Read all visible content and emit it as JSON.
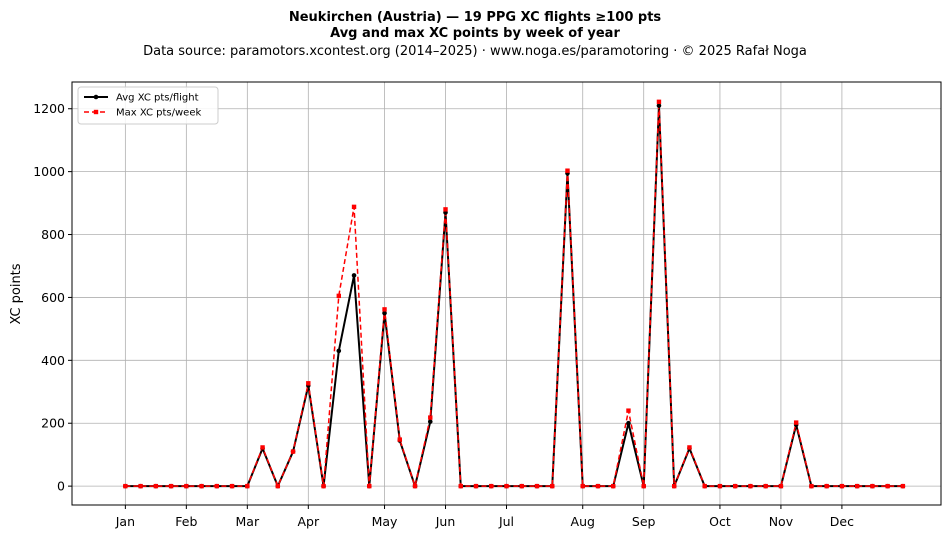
{
  "chart_data": {
    "type": "line",
    "title_line1": "Neukirchen (Austria)  —  19 PPG XC flights ≥100 pts",
    "title_line2": "Avg and max XC points by week of year",
    "subtitle": "Data source: paramotors.xcontest.org (2014–2025)  ·  www.noga.es/paramotoring  ·  © 2025 Rafał Noga",
    "xlabel": "",
    "ylabel": "XC points",
    "xlim": [
      -2.5,
      54.5
    ],
    "ylim": [
      -60,
      1285
    ],
    "yticks": [
      0,
      200,
      400,
      600,
      800,
      1000,
      1200
    ],
    "month_ticks": [
      {
        "label": "Jan",
        "week": 1
      },
      {
        "label": "Feb",
        "week": 5
      },
      {
        "label": "Mar",
        "week": 9
      },
      {
        "label": "Apr",
        "week": 13
      },
      {
        "label": "May",
        "week": 18
      },
      {
        "label": "Jun",
        "week": 22
      },
      {
        "label": "Jul",
        "week": 26
      },
      {
        "label": "Aug",
        "week": 31
      },
      {
        "label": "Sep",
        "week": 35
      },
      {
        "label": "Oct",
        "week": 40
      },
      {
        "label": "Nov",
        "week": 44
      },
      {
        "label": "Dec",
        "week": 48
      }
    ],
    "grid": true,
    "legend_position": "top-left",
    "x": [
      1,
      2,
      3,
      4,
      5,
      6,
      7,
      8,
      9,
      10,
      11,
      12,
      13,
      14,
      15,
      16,
      17,
      18,
      19,
      20,
      21,
      22,
      23,
      24,
      25,
      26,
      27,
      28,
      29,
      30,
      31,
      32,
      33,
      34,
      35,
      36,
      37,
      38,
      39,
      40,
      41,
      42,
      43,
      44,
      45,
      46,
      47,
      48,
      49,
      50,
      51,
      52
    ],
    "series": [
      {
        "name": "Avg XC pts/flight",
        "color": "#000000",
        "style": "solid",
        "marker": "circle",
        "values": [
          0,
          0,
          0,
          0,
          0,
          0,
          0,
          0,
          0,
          120,
          0,
          110,
          320,
          0,
          430,
          670,
          0,
          550,
          145,
          0,
          205,
          870,
          0,
          0,
          0,
          0,
          0,
          0,
          0,
          995,
          0,
          0,
          0,
          200,
          0,
          1210,
          0,
          120,
          0,
          0,
          0,
          0,
          0,
          0,
          195,
          0,
          0,
          0,
          0,
          0,
          0,
          0
        ]
      },
      {
        "name": "Max XC pts/week",
        "color": "#ff0000",
        "style": "dashed",
        "marker": "square",
        "values": [
          0,
          0,
          0,
          0,
          0,
          0,
          0,
          0,
          0,
          123,
          0,
          110,
          327,
          0,
          605,
          888,
          0,
          562,
          148,
          0,
          218,
          880,
          0,
          0,
          0,
          0,
          0,
          0,
          0,
          1003,
          0,
          0,
          0,
          240,
          0,
          1222,
          0,
          123,
          0,
          0,
          0,
          0,
          0,
          0,
          202,
          0,
          0,
          0,
          0,
          0,
          0,
          0
        ]
      }
    ]
  }
}
